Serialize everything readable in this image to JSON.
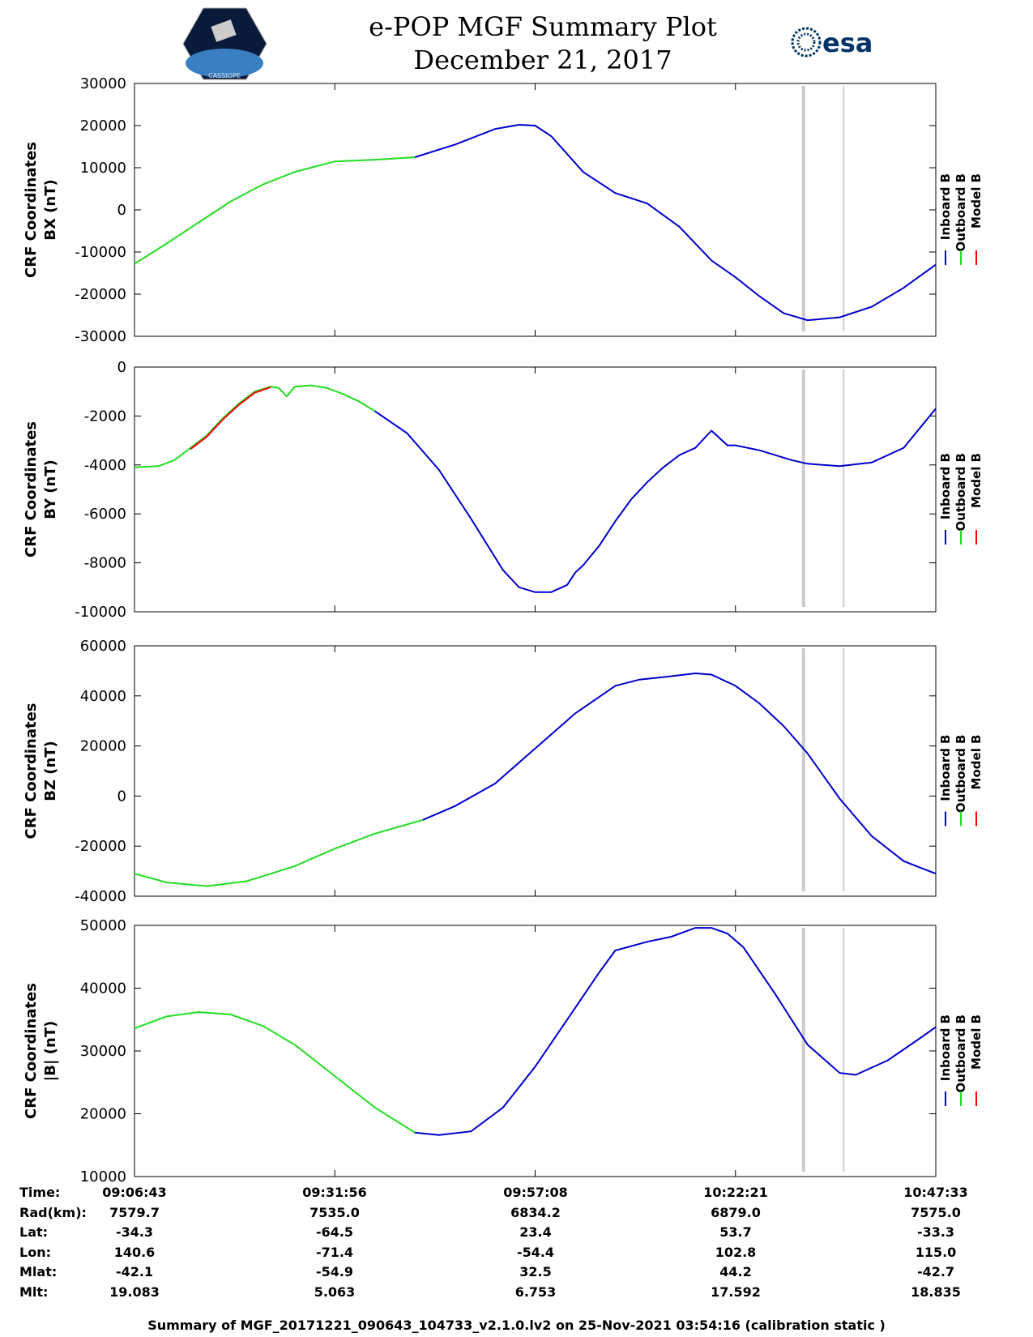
{
  "header": {
    "title_line1": "e-POP MGF Summary Plot",
    "title_line2": "December 21, 2017",
    "logo_left_text": "CASSIOPE",
    "logo_right_text": "esa"
  },
  "legend": [
    "Inboard B",
    "Outboard B",
    "Model B"
  ],
  "colors": {
    "inboard": "#0000cc",
    "outboard": "#22dd22",
    "model": "#ff0000",
    "marker": "#cccccc"
  },
  "chart_data": [
    {
      "type": "line",
      "ylabel_line1": "CRF Coordinates",
      "ylabel_line2": "BX (nT)",
      "ylim": [
        -30000,
        30000
      ],
      "yticks": [
        "30000",
        "20000",
        "10000",
        "0",
        "-10000",
        "-20000",
        "-30000"
      ],
      "xlim": [
        0,
        100
      ],
      "series": [
        {
          "name": "Outboard B",
          "x": [
            0,
            4,
            8,
            12,
            16,
            20,
            25,
            30,
            35
          ],
          "y": [
            -12800,
            -8000,
            -3000,
            2000,
            6000,
            9000,
            11500,
            11900,
            12500
          ]
        },
        {
          "name": "Inboard B",
          "x": [
            35,
            40,
            45,
            48,
            50,
            52,
            56,
            60,
            64,
            68,
            72,
            75,
            78,
            81,
            84,
            88,
            92,
            96,
            100
          ],
          "y": [
            12500,
            15500,
            19200,
            20200,
            20000,
            17500,
            9000,
            4000,
            1500,
            -4000,
            -12000,
            -16000,
            -20500,
            -24500,
            -26200,
            -25500,
            -23000,
            -18500,
            -13000
          ]
        }
      ],
      "markers_x": [
        83.5,
        88.5
      ]
    },
    {
      "type": "line",
      "ylabel_line1": "CRF Coordinates",
      "ylabel_line2": "BY (nT)",
      "ylim": [
        -10000,
        0
      ],
      "yticks": [
        "0",
        "-2000",
        "-4000",
        "-6000",
        "-8000",
        "-10000"
      ],
      "xlim": [
        0,
        100
      ],
      "series": [
        {
          "name": "Outboard B",
          "x": [
            0,
            3,
            5,
            7,
            9,
            11,
            13,
            15,
            17,
            18,
            19,
            20,
            22,
            24,
            26,
            28,
            30
          ],
          "y": [
            -4100,
            -4050,
            -3800,
            -3300,
            -2800,
            -2100,
            -1500,
            -1000,
            -800,
            -850,
            -1200,
            -800,
            -750,
            -850,
            -1100,
            -1400,
            -1800
          ]
        },
        {
          "name": "Inboard B",
          "x": [
            30,
            34,
            38,
            42,
            46,
            48,
            50,
            52,
            54,
            55,
            56,
            58,
            60,
            62,
            64,
            66,
            68,
            70,
            72,
            74,
            75,
            78,
            82,
            84,
            88,
            92,
            96,
            100
          ],
          "y": [
            -1800,
            -2700,
            -4200,
            -6200,
            -8300,
            -9000,
            -9200,
            -9200,
            -8900,
            -8400,
            -8100,
            -7300,
            -6300,
            -5400,
            -4700,
            -4100,
            -3600,
            -3300,
            -2600,
            -3200,
            -3200,
            -3400,
            -3800,
            -3950,
            -4050,
            -3900,
            -3300,
            -1700
          ]
        },
        {
          "name": "Model B",
          "x": [
            7,
            9,
            11,
            13,
            15,
            17
          ],
          "y": [
            -3350,
            -2850,
            -2150,
            -1550,
            -1050,
            -820
          ]
        }
      ],
      "markers_x": [
        83.5,
        88.5
      ]
    },
    {
      "type": "line",
      "ylabel_line1": "CRF Coordinates",
      "ylabel_line2": "BZ (nT)",
      "ylim": [
        -40000,
        60000
      ],
      "yticks": [
        "60000",
        "40000",
        "20000",
        "0",
        "-20000",
        "-40000"
      ],
      "xlim": [
        0,
        100
      ],
      "series": [
        {
          "name": "Outboard B",
          "x": [
            0,
            4,
            9,
            14,
            20,
            25,
            30,
            36
          ],
          "y": [
            -31000,
            -34500,
            -36000,
            -34000,
            -28000,
            -21000,
            -15000,
            -9500
          ]
        },
        {
          "name": "Inboard B",
          "x": [
            36,
            40,
            45,
            50,
            55,
            60,
            63,
            66,
            70,
            72,
            75,
            78,
            81,
            84,
            88,
            92,
            96,
            100
          ],
          "y": [
            -9500,
            -4000,
            5000,
            19000,
            33000,
            44000,
            46500,
            47500,
            49000,
            48500,
            44000,
            37000,
            28000,
            17000,
            -1000,
            -16000,
            -26000,
            -31000
          ]
        }
      ],
      "markers_x": [
        83.5,
        88.5
      ]
    },
    {
      "type": "line",
      "ylabel_line1": "CRF Coordinates",
      "ylabel_line2": "|B| (nT)",
      "ylim": [
        10000,
        50000
      ],
      "yticks": [
        "50000",
        "40000",
        "30000",
        "20000",
        "10000"
      ],
      "xlim": [
        0,
        100
      ],
      "series": [
        {
          "name": "Outboard B",
          "x": [
            0,
            4,
            8,
            12,
            16,
            20,
            25,
            30,
            35
          ],
          "y": [
            33600,
            35500,
            36200,
            35800,
            34000,
            31000,
            26000,
            21000,
            17000
          ]
        },
        {
          "name": "Inboard B",
          "x": [
            35,
            38,
            42,
            46,
            50,
            54,
            58,
            60,
            64,
            67,
            70,
            72,
            74,
            76,
            80,
            84,
            88,
            90,
            94,
            98,
            100
          ],
          "y": [
            17000,
            16600,
            17200,
            21000,
            27500,
            35000,
            42500,
            46000,
            47400,
            48200,
            49600,
            49600,
            48700,
            46500,
            39000,
            31000,
            26500,
            26200,
            28500,
            32000,
            33800
          ]
        }
      ],
      "markers_x": [
        83.5,
        88.5
      ]
    }
  ],
  "info": {
    "labels": [
      "Time:",
      "Rad(km):",
      "Lat:",
      "Lon:",
      "Mlat:",
      "Mlt:"
    ],
    "columns": [
      [
        "09:06:43",
        "7579.7",
        "-34.3",
        "140.6",
        "-42.1",
        "19.083"
      ],
      [
        "09:31:56",
        "7535.0",
        "-64.5",
        "-71.4",
        "-54.9",
        "5.063"
      ],
      [
        "09:57:08",
        "6834.2",
        "23.4",
        "-54.4",
        "32.5",
        "6.753"
      ],
      [
        "10:22:21",
        "6879.0",
        "53.7",
        "102.8",
        "44.2",
        "17.592"
      ],
      [
        "10:47:33",
        "7575.0",
        "-33.3",
        "115.0",
        "-42.7",
        "18.835"
      ]
    ]
  },
  "footer": "Summary of MGF_20171221_090643_104733_v2.1.0.lv2 on 25-Nov-2021 03:54:16 (calibration static )"
}
